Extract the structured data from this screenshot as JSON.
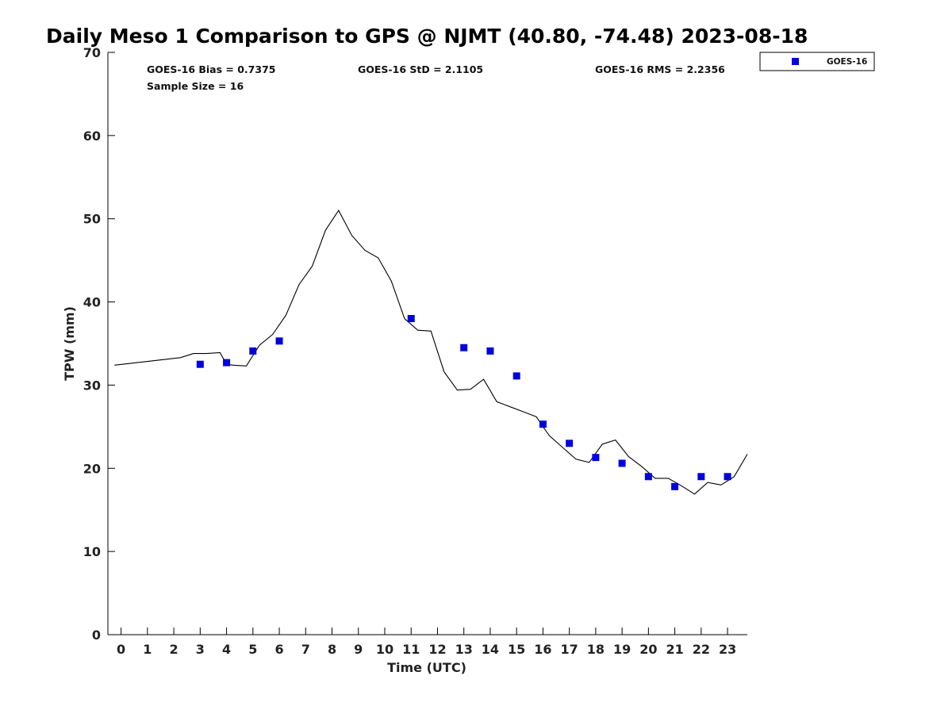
{
  "chart_data": {
    "type": "line",
    "title": "Daily Meso 1 Comparison to GPS @ NJMT (40.80, -74.48) 2023-08-18",
    "xlabel": "Time (UTC)",
    "ylabel": "TPW (mm)",
    "xlim": [
      -0.5,
      23.75
    ],
    "ylim": [
      0,
      70
    ],
    "x_ticks": [
      0,
      1,
      2,
      3,
      4,
      5,
      6,
      7,
      8,
      9,
      10,
      11,
      12,
      13,
      14,
      15,
      16,
      17,
      18,
      19,
      20,
      21,
      22,
      23
    ],
    "y_ticks": [
      0,
      10,
      20,
      30,
      40,
      50,
      60,
      70
    ],
    "grid": false,
    "legend_position": "top-right",
    "stats": {
      "bias": "GOES-16 Bias = 0.7375",
      "std": "GOES-16 StD = 2.1105",
      "rms": "GOES-16 RMS = 2.2356",
      "sample": "Sample Size = 16"
    },
    "series": [
      {
        "name": "",
        "kind": "line",
        "color": "#000000",
        "x": [
          -0.25,
          2.25,
          2.75,
          3.25,
          3.75,
          4.0,
          4.25,
          4.75,
          5.25,
          5.75,
          6.25,
          6.75,
          7.25,
          7.75,
          8.25,
          8.75,
          9.25,
          9.75,
          10.25,
          10.75,
          11.25,
          11.75,
          12.25,
          12.75,
          13.25,
          13.75,
          14.25,
          14.75,
          15.25,
          15.75,
          16.0,
          16.25,
          16.75,
          17.25,
          17.75,
          18.25,
          18.75,
          19.25,
          19.75,
          20.25,
          20.75,
          21.25,
          21.75,
          22.25,
          22.75,
          23.25,
          23.75
        ],
        "y": [
          32.4,
          33.3,
          33.8,
          33.8,
          33.9,
          32.5,
          32.4,
          32.3,
          34.8,
          36.1,
          38.4,
          42.1,
          44.3,
          48.6,
          51.0,
          48.0,
          46.2,
          45.3,
          42.5,
          38.0,
          36.6,
          36.5,
          31.6,
          29.4,
          29.5,
          30.7,
          28.0,
          27.4,
          26.8,
          26.2,
          25.0,
          23.9,
          22.5,
          21.1,
          20.7,
          22.9,
          23.4,
          21.4,
          20.2,
          18.8,
          18.8,
          17.9,
          16.9,
          18.3,
          18.0,
          19.0,
          21.7
        ]
      },
      {
        "name": "GOES-16",
        "kind": "scatter",
        "color": "#0000dd",
        "x": [
          3,
          4,
          5,
          6,
          11,
          13,
          14,
          15,
          16,
          17,
          18,
          19,
          20,
          21,
          22,
          23
        ],
        "y": [
          32.5,
          32.7,
          34.1,
          35.3,
          38.0,
          34.5,
          34.1,
          31.1,
          25.3,
          23.0,
          21.3,
          20.6,
          19.0,
          17.8,
          19.0,
          19.0
        ]
      }
    ]
  }
}
